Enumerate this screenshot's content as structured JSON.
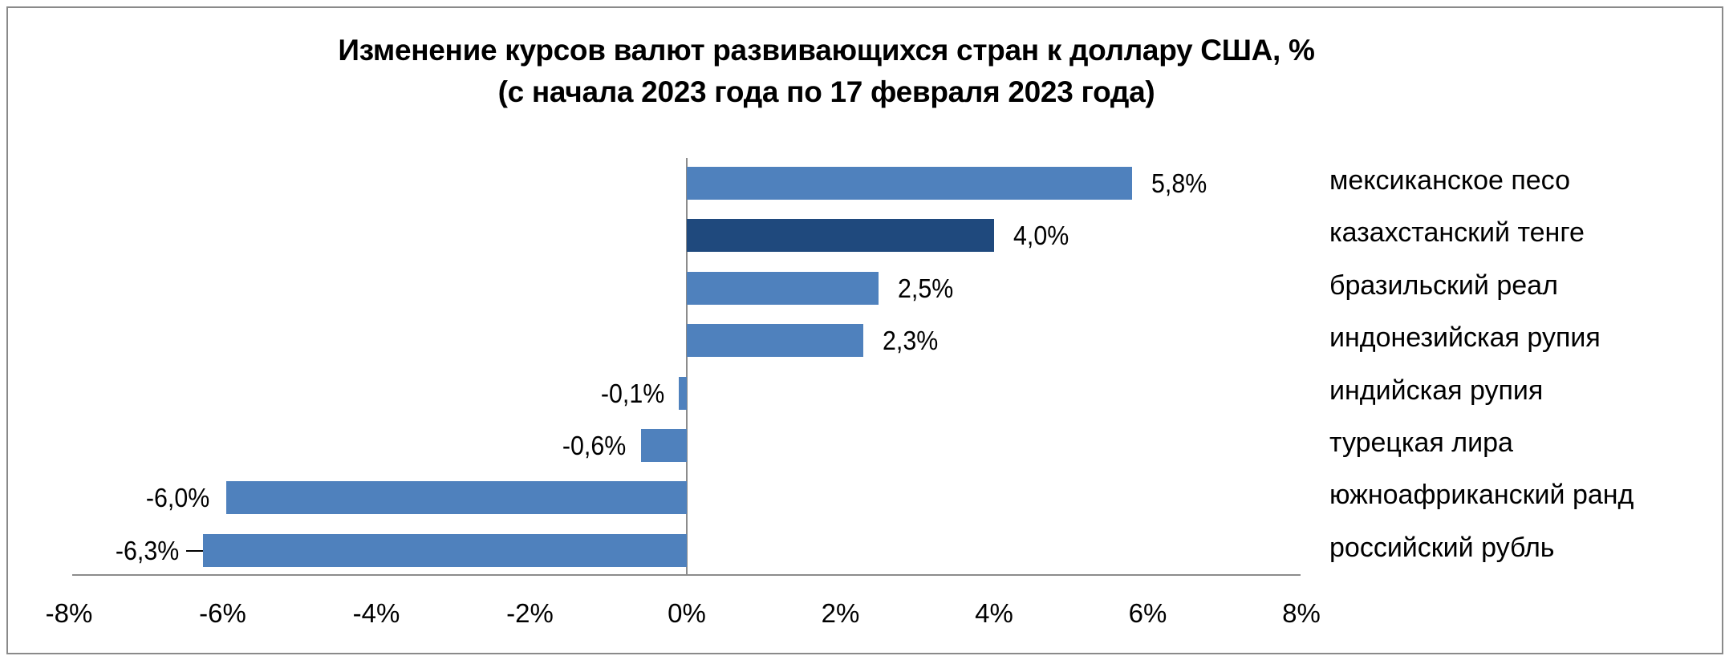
{
  "chart_data": {
    "type": "bar",
    "orientation": "horizontal",
    "title": "Изменение курсов валют развивающихся стран к доллару США, %",
    "subtitle": "(с начала 2023 года по 17 февраля 2023 года)",
    "xlabel": "",
    "ylabel": "",
    "xlim": [
      -8,
      8
    ],
    "x_ticks": [
      "-8%",
      "-6%",
      "-4%",
      "-2%",
      "0%",
      "2%",
      "4%",
      "6%",
      "8%"
    ],
    "grid": false,
    "legend": null,
    "categories": [
      "мексиканское песо",
      "казахстанский тенге",
      "бразильский реал",
      "индонезийская рупия",
      "индийская рупия",
      "турецкая лира",
      "южноафриканский ранд",
      "российский рубль"
    ],
    "values": [
      5.8,
      4.0,
      2.5,
      2.3,
      -0.1,
      -0.6,
      -6.0,
      -6.3
    ],
    "value_labels": [
      "5,8%",
      "4,0%",
      "2,5%",
      "2,3%",
      "-0,1%",
      "-0,6%",
      "-6,0%",
      "-6,3%"
    ],
    "highlighted_category": "казахстанский тенге",
    "colors": {
      "default": "#4F81BD",
      "highlight": "#1F497D"
    }
  },
  "header": {
    "title_line1": "Изменение курсов валют развивающихся стран к доллару США, %",
    "title_line2": "(с начала 2023 года по 17 февраля 2023 года)"
  },
  "axis": {
    "ticks": [
      "-8%",
      "-6%",
      "-4%",
      "-2%",
      "0%",
      "2%",
      "4%",
      "6%",
      "8%"
    ]
  },
  "rows": [
    {
      "label": "мексиканское песо",
      "value_label": "5,8%"
    },
    {
      "label": "казахстанский тенге",
      "value_label": "4,0%"
    },
    {
      "label": "бразильский реал",
      "value_label": "2,5%"
    },
    {
      "label": "индонезийская рупия",
      "value_label": "2,3%"
    },
    {
      "label": "индийская рупия",
      "value_label": "-0,1%"
    },
    {
      "label": "турецкая лира",
      "value_label": "-0,6%"
    },
    {
      "label": "южноафриканский ранд",
      "value_label": "-6,0%"
    },
    {
      "label": "российский рубль",
      "value_label": "-6,3%"
    }
  ]
}
